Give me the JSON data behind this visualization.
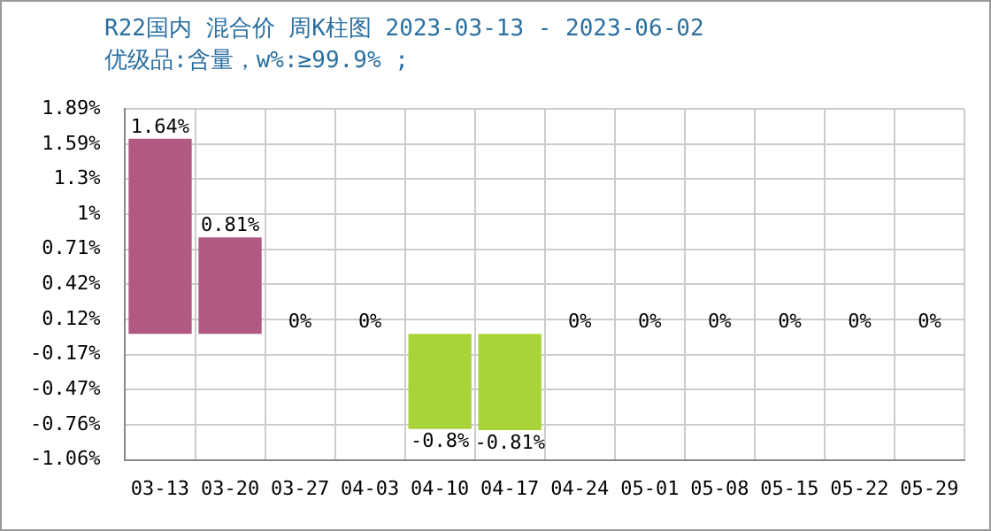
{
  "chart_data": {
    "type": "bar",
    "title": "R22国内 混合价 周K柱图 2023-03-13 - 2023-06-02",
    "subtitle": "优级品:含量，w%:≥99.9% ;",
    "categories": [
      "03-13",
      "03-20",
      "03-27",
      "04-03",
      "04-10",
      "04-17",
      "04-24",
      "05-01",
      "05-08",
      "05-15",
      "05-22",
      "05-29"
    ],
    "values": [
      1.64,
      0.81,
      0,
      0,
      -0.8,
      -0.81,
      0,
      0,
      0,
      0,
      0,
      0
    ],
    "value_labels": [
      "1.64%",
      "0.81%",
      "0%",
      "0%",
      "-0.8%",
      "-0.81%",
      "0%",
      "0%",
      "0%",
      "0%",
      "0%",
      "0%"
    ],
    "colors": [
      "#b05a82",
      "#b05a82",
      "#b05a82",
      "#b05a82",
      "#a8d43a",
      "#a8d43a",
      "#b05a82",
      "#b05a82",
      "#b05a82",
      "#b05a82",
      "#b05a82",
      "#b05a82"
    ],
    "ylim": [
      -1.06,
      1.89
    ],
    "yticks": [
      {
        "value": -1.06,
        "label": "-1.06%"
      },
      {
        "value": -0.765,
        "label": "-0.76%"
      },
      {
        "value": -0.47,
        "label": "-0.47%"
      },
      {
        "value": -0.175,
        "label": "-0.17%"
      },
      {
        "value": 0.12,
        "label": "0.12%"
      },
      {
        "value": 0.415,
        "label": "0.42%"
      },
      {
        "value": 0.71,
        "label": "0.71%"
      },
      {
        "value": 1.005,
        "label": "1%"
      },
      {
        "value": 1.3,
        "label": "1.3%"
      },
      {
        "value": 1.595,
        "label": "1.59%"
      },
      {
        "value": 1.89,
        "label": "1.89%"
      }
    ],
    "grid": true,
    "legend": false
  }
}
